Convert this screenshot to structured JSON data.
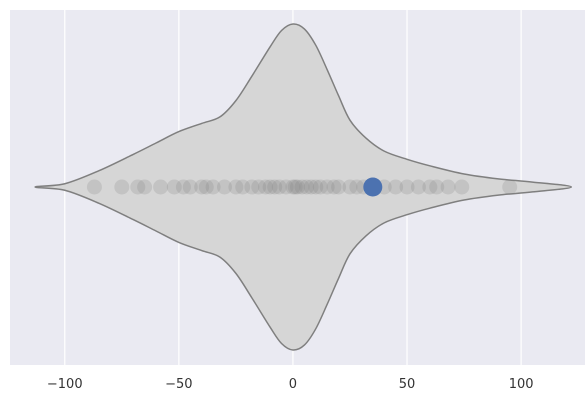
{
  "chart_data": {
    "type": "violin",
    "orientation": "horizontal",
    "title": "",
    "xlabel": "",
    "ylabel": "",
    "xlim": [
      -124,
      128
    ],
    "xticks": [
      -100,
      -50,
      0,
      50,
      100
    ],
    "xtick_labels": [
      "−100",
      "−50",
      "0",
      "50",
      "100"
    ],
    "grid": true,
    "colors": {
      "background": "#eaeaf2",
      "grid": "#ffffff",
      "violin_fill": "#d6d6d6",
      "violin_edge": "#7f7f7f",
      "points": "#808080",
      "highlight": "#4c72b0"
    },
    "density_profile": [
      [
        -113,
        0.0
      ],
      [
        -100,
        0.02
      ],
      [
        -85,
        0.1
      ],
      [
        -70,
        0.2
      ],
      [
        -60,
        0.27
      ],
      [
        -50,
        0.34
      ],
      [
        -40,
        0.39
      ],
      [
        -32,
        0.43
      ],
      [
        -25,
        0.53
      ],
      [
        -18,
        0.68
      ],
      [
        -10,
        0.86
      ],
      [
        -5,
        0.96
      ],
      [
        0,
        1.0
      ],
      [
        5,
        0.97
      ],
      [
        10,
        0.87
      ],
      [
        15,
        0.72
      ],
      [
        20,
        0.56
      ],
      [
        25,
        0.41
      ],
      [
        32,
        0.3
      ],
      [
        40,
        0.22
      ],
      [
        50,
        0.17
      ],
      [
        60,
        0.13
      ],
      [
        75,
        0.08
      ],
      [
        90,
        0.05
      ],
      [
        105,
        0.03
      ],
      [
        122,
        0.0
      ]
    ],
    "points": [
      -87,
      -75,
      -68,
      -65,
      -58,
      -52,
      -48,
      -45,
      -40,
      -38,
      -35,
      -30,
      -25,
      -22,
      -18,
      -15,
      -12,
      -10,
      -8,
      -6,
      -3,
      0,
      1,
      2,
      4,
      6,
      8,
      10,
      12,
      15,
      18,
      20,
      25,
      28,
      31,
      40,
      45,
      50,
      55,
      60,
      63,
      68,
      74,
      95
    ],
    "highlight_point": 35
  }
}
